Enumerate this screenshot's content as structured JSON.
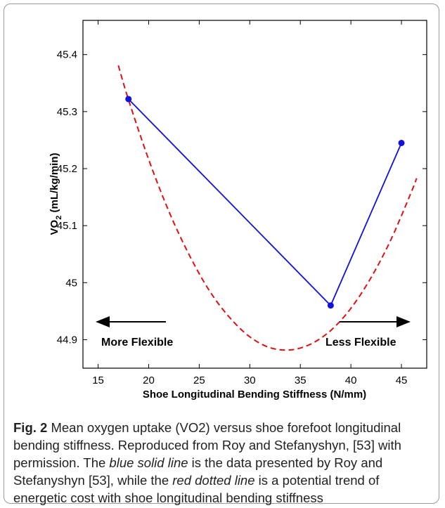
{
  "chart_data": {
    "type": "line",
    "xlabel": "Shoe Longitudinal Bending Stiffness (N/mm)",
    "ylabel_main": "VO",
    "ylabel_sub": "2",
    "ylabel_tail": " (mL/kg/min)",
    "xlim": [
      13.5,
      47.5
    ],
    "ylim": [
      44.85,
      45.46
    ],
    "xticks": [
      15,
      20,
      25,
      30,
      35,
      40,
      45
    ],
    "yticks": [
      44.9,
      45,
      45.1,
      45.2,
      45.3,
      45.4
    ],
    "ytick_labels": [
      "44.9",
      "45",
      "45.1",
      "45.2",
      "45.3",
      "45.4"
    ],
    "series": [
      {
        "style": "solid line with circle markers",
        "color": "#1010e0",
        "x": [
          18,
          38,
          45
        ],
        "y": [
          45.322,
          44.96,
          45.245
        ]
      },
      {
        "style": "dashed line",
        "color": "#e01010",
        "x": [
          17,
          18,
          20,
          22,
          24,
          26,
          28,
          30,
          32,
          34,
          36,
          38,
          40,
          42,
          44,
          46,
          46.5
        ],
        "y": [
          45.381,
          45.321,
          45.216,
          45.125,
          45.049,
          44.986,
          44.939,
          44.905,
          44.886,
          44.882,
          44.892,
          44.916,
          44.955,
          45.009,
          45.077,
          45.16,
          45.183
        ]
      }
    ],
    "annotations": [
      {
        "text": "More Flexible",
        "arrow": "left"
      },
      {
        "text": "Less Flexible",
        "arrow": "right"
      }
    ]
  },
  "caption": {
    "label": "Fig. 2",
    "part1": " Mean oxygen uptake (VO2) versus shoe forefoot longitudinal bending stiffness. Reproduced from Roy and Stefanyshyn, [53] with permission. The ",
    "em1": "blue solid line",
    "part2": " is the data presented by Roy and Stefanyshyn [53], while the ",
    "em2": "red dotted line",
    "part3": " is a potential trend of energetic cost with shoe longitudinal bending stiffness"
  }
}
